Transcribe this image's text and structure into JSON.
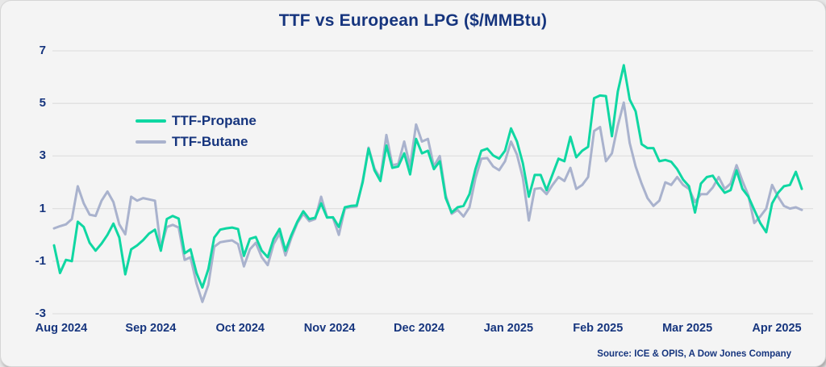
{
  "card": {
    "source": "Source: ICE & OPIS, A Dow Jones Company"
  },
  "colors": {
    "accent_text": "#16357e",
    "propane_line": "#0fd7a2",
    "butane_line": "#a9b2cd",
    "gridline": "#e0e0e0",
    "card_background": "#f4f4f4"
  },
  "chart_data": {
    "type": "line",
    "title": "TTF vs European LPG ($/MMBtu)",
    "xlabel": "",
    "ylabel": "",
    "x_tick_labels": [
      "Aug 2024",
      "Sep 2024",
      "Oct 2024",
      "Nov 2024",
      "Dec 2024",
      "Jan 2025",
      "Feb 2025",
      "Mar 2025",
      "Apr 2025"
    ],
    "y_ticks": [
      7,
      5,
      3,
      1,
      -1,
      -3
    ],
    "ylim": [
      -3,
      7
    ],
    "grid": "horizontal",
    "legend_position": "top-left",
    "series": [
      {
        "name": "TTF-Propane",
        "color": "#0fd7a2",
        "values": [
          -0.4,
          -1.45,
          -0.95,
          -1.0,
          0.5,
          0.3,
          -0.3,
          -0.6,
          -0.33,
          0.0,
          0.43,
          -0.1,
          -1.5,
          -0.55,
          -0.4,
          -0.2,
          0.05,
          0.2,
          -0.6,
          0.6,
          0.72,
          0.62,
          -0.7,
          -0.55,
          -1.45,
          -2.0,
          -1.3,
          -0.1,
          0.2,
          0.25,
          0.28,
          0.22,
          -0.8,
          -0.15,
          -0.08,
          -0.6,
          -0.85,
          -0.15,
          0.23,
          -0.6,
          0.0,
          0.5,
          0.9,
          0.6,
          0.65,
          1.2,
          0.66,
          0.67,
          0.3,
          1.05,
          1.1,
          1.12,
          2.0,
          3.28,
          2.45,
          2.05,
          3.4,
          2.55,
          2.6,
          3.1,
          2.3,
          3.65,
          3.1,
          3.2,
          2.5,
          2.8,
          1.4,
          0.85,
          1.05,
          1.1,
          1.55,
          2.5,
          3.2,
          3.28,
          3.02,
          2.9,
          3.2,
          4.05,
          3.55,
          2.72,
          1.45,
          2.28,
          2.28,
          1.7,
          2.3,
          2.9,
          2.8,
          3.73,
          2.95,
          3.2,
          3.35,
          5.2,
          5.3,
          5.28,
          3.75,
          5.45,
          6.45,
          5.15,
          4.7,
          3.45,
          3.3,
          3.3,
          2.8,
          2.85,
          2.78,
          2.5,
          2.1,
          1.85,
          0.85,
          1.95,
          2.2,
          2.25,
          1.9,
          1.6,
          1.7,
          2.45,
          1.75,
          1.45,
          0.95,
          0.45,
          0.1,
          1.2,
          1.6,
          1.85,
          1.9,
          2.4,
          1.75
        ]
      },
      {
        "name": "TTF-Butane",
        "color": "#a9b2cd",
        "values": [
          0.25,
          0.33,
          0.4,
          0.6,
          1.85,
          1.2,
          0.77,
          0.72,
          1.3,
          1.65,
          1.25,
          0.4,
          0.02,
          1.45,
          1.3,
          1.4,
          1.35,
          1.3,
          -0.5,
          0.3,
          0.38,
          0.28,
          -0.95,
          -0.85,
          -1.85,
          -2.55,
          -1.9,
          -0.45,
          -0.28,
          -0.24,
          -0.21,
          -0.35,
          -1.2,
          -0.55,
          -0.3,
          -0.85,
          -1.15,
          -0.35,
          0.05,
          -0.78,
          -0.1,
          0.45,
          0.8,
          0.52,
          0.6,
          1.45,
          0.68,
          0.65,
          0.0,
          1.0,
          1.06,
          1.08,
          2.05,
          3.32,
          2.52,
          2.15,
          3.8,
          2.65,
          2.7,
          3.55,
          2.6,
          4.2,
          3.55,
          3.65,
          2.6,
          3.0,
          1.5,
          0.8,
          0.95,
          0.7,
          1.05,
          2.15,
          2.9,
          2.92,
          2.6,
          2.46,
          2.8,
          3.55,
          3.05,
          2.17,
          0.55,
          1.75,
          1.78,
          1.55,
          1.9,
          2.2,
          2.05,
          2.55,
          1.75,
          1.9,
          2.2,
          3.95,
          4.1,
          2.8,
          3.1,
          4.16,
          5.03,
          3.5,
          2.6,
          1.95,
          1.4,
          1.1,
          1.3,
          2.0,
          1.9,
          2.2,
          1.9,
          1.75,
          1.25,
          1.55,
          1.55,
          1.8,
          2.2,
          1.75,
          1.95,
          2.65,
          2.05,
          1.5,
          0.45,
          0.7,
          1.0,
          1.9,
          1.45,
          1.1,
          1.0,
          1.05,
          0.95
        ]
      }
    ]
  }
}
